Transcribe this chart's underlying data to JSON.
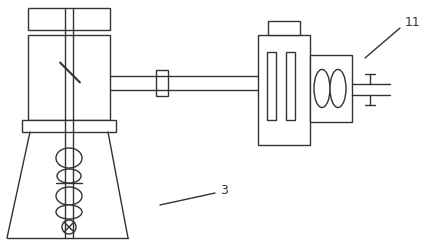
{
  "background_color": "#ffffff",
  "line_color": "#333333",
  "lw": 1.0,
  "label_11": "11",
  "label_3": "3",
  "figsize": [
    4.28,
    2.5
  ],
  "dpi": 100
}
